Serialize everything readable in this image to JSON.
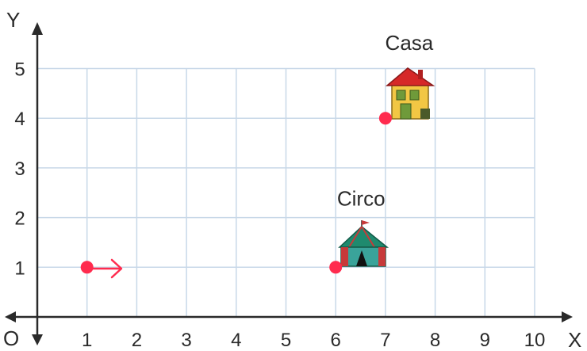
{
  "axes": {
    "x_label": "X",
    "y_label": "Y",
    "origin_label": "O",
    "x_ticks": [
      "1",
      "2",
      "3",
      "4",
      "5",
      "6",
      "7",
      "8",
      "9",
      "10"
    ],
    "y_ticks": [
      "1",
      "2",
      "3",
      "4",
      "5"
    ]
  },
  "points": [
    {
      "id": "start",
      "x": 1,
      "y": 1,
      "label": "",
      "icon": "arrow-right-icon"
    },
    {
      "id": "circo",
      "x": 6,
      "y": 1,
      "label": "Circo",
      "icon": "circus-tent-icon"
    },
    {
      "id": "casa",
      "x": 7,
      "y": 4,
      "label": "Casa",
      "icon": "house-icon"
    }
  ],
  "colors": {
    "grid": "#c8d8e8",
    "axis": "#2a2a2a",
    "point": "#ff2b4e",
    "arrow": "#ff2b4e",
    "house_roof": "#d62828",
    "house_wall": "#f2c744",
    "house_window": "#6f9a3a",
    "tent_green": "#1f8a6e",
    "tent_red": "#c73a3a",
    "tent_teal": "#3aa39a"
  }
}
